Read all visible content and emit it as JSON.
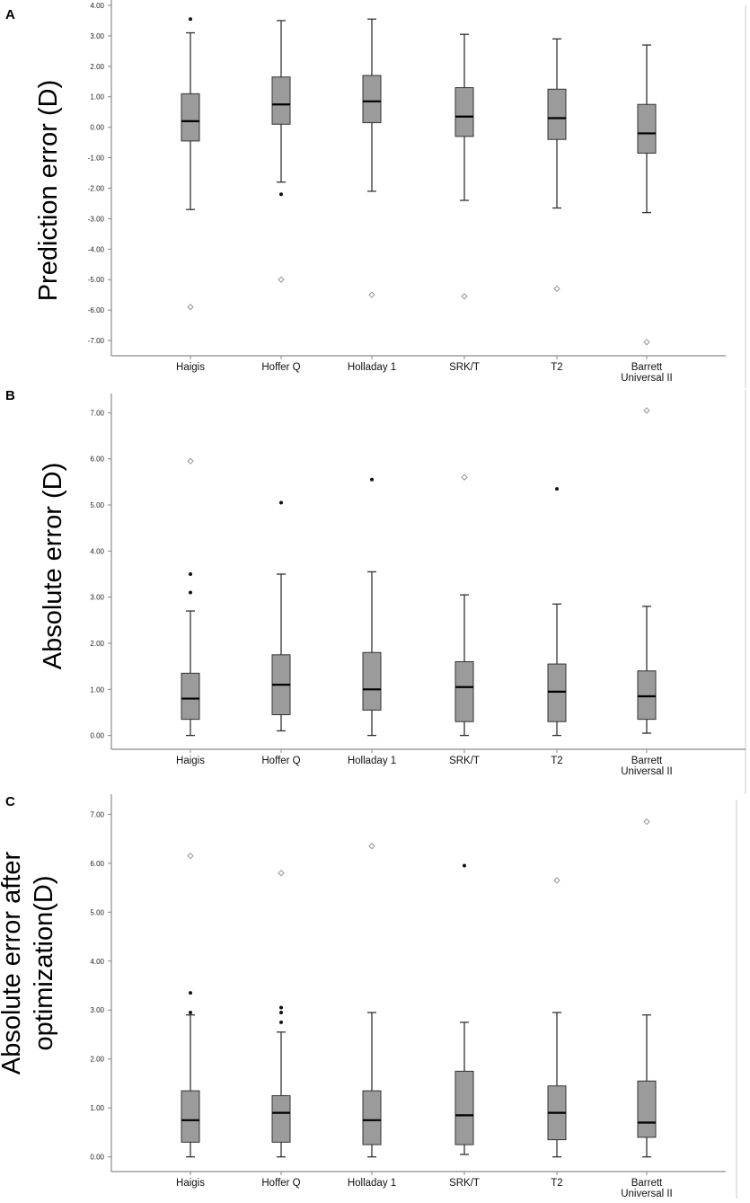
{
  "chart_data": [
    {
      "type": "boxplot",
      "panel": "A",
      "ylabel": "Prediction error (D)",
      "ylim": [
        -7.5,
        4.0
      ],
      "yticks": [
        "4.00",
        "3.00",
        "2.00",
        "1.00",
        "0.00",
        "-1.00",
        "-2.00",
        "-3.00",
        "-4.00",
        "-5.00",
        "-6.00",
        "-7.00"
      ],
      "categories": [
        "Haigis",
        "Hoffer Q",
        "Holladay 1",
        "SRK/T",
        "T2",
        "Barrett Universal II"
      ],
      "boxes": [
        {
          "whisker_low": -2.7,
          "q1": -0.45,
          "median": 0.2,
          "q3": 1.1,
          "whisker_high": 3.1
        },
        {
          "whisker_low": -1.8,
          "q1": 0.1,
          "median": 0.75,
          "q3": 1.65,
          "whisker_high": 3.5
        },
        {
          "whisker_low": -2.1,
          "q1": 0.15,
          "median": 0.85,
          "q3": 1.7,
          "whisker_high": 3.55
        },
        {
          "whisker_low": -2.4,
          "q1": -0.3,
          "median": 0.35,
          "q3": 1.3,
          "whisker_high": 3.05
        },
        {
          "whisker_low": -2.65,
          "q1": -0.4,
          "median": 0.3,
          "q3": 1.25,
          "whisker_high": 2.9
        },
        {
          "whisker_low": -2.8,
          "q1": -0.85,
          "median": -0.2,
          "q3": 0.75,
          "whisker_high": 2.7
        }
      ],
      "outliers": [
        {
          "category": 0,
          "value": 3.55,
          "kind": "dot"
        },
        {
          "category": 0,
          "value": -5.9,
          "kind": "diamond"
        },
        {
          "category": 1,
          "value": -2.2,
          "kind": "dot"
        },
        {
          "category": 1,
          "value": -5.0,
          "kind": "diamond"
        },
        {
          "category": 2,
          "value": -5.5,
          "kind": "diamond"
        },
        {
          "category": 3,
          "value": -5.55,
          "kind": "diamond"
        },
        {
          "category": 4,
          "value": -5.3,
          "kind": "diamond"
        },
        {
          "category": 5,
          "value": -7.05,
          "kind": "diamond"
        }
      ]
    },
    {
      "type": "boxplot",
      "panel": "B",
      "ylabel": "Absolute error (D)",
      "ylim": [
        -0.3,
        7.3
      ],
      "yticks": [
        "7.00",
        "6.00",
        "5.00",
        "4.00",
        "3.00",
        "2.00",
        "1.00",
        "0.00"
      ],
      "categories": [
        "Haigis",
        "Hoffer Q",
        "Holladay 1",
        "SRK/T",
        "T2",
        "Barrett Universal II"
      ],
      "boxes": [
        {
          "whisker_low": 0.0,
          "q1": 0.35,
          "median": 0.8,
          "q3": 1.35,
          "whisker_high": 2.7
        },
        {
          "whisker_low": 0.1,
          "q1": 0.45,
          "median": 1.1,
          "q3": 1.75,
          "whisker_high": 3.5
        },
        {
          "whisker_low": 0.0,
          "q1": 0.55,
          "median": 1.0,
          "q3": 1.8,
          "whisker_high": 3.55
        },
        {
          "whisker_low": 0.0,
          "q1": 0.3,
          "median": 1.05,
          "q3": 1.6,
          "whisker_high": 3.05
        },
        {
          "whisker_low": 0.0,
          "q1": 0.3,
          "median": 0.95,
          "q3": 1.55,
          "whisker_high": 2.85
        },
        {
          "whisker_low": 0.05,
          "q1": 0.35,
          "median": 0.85,
          "q3": 1.4,
          "whisker_high": 2.8
        }
      ],
      "outliers": [
        {
          "category": 0,
          "value": 5.95,
          "kind": "diamond"
        },
        {
          "category": 0,
          "value": 3.5,
          "kind": "dot"
        },
        {
          "category": 0,
          "value": 3.1,
          "kind": "dot"
        },
        {
          "category": 1,
          "value": 5.05,
          "kind": "dot"
        },
        {
          "category": 2,
          "value": 5.55,
          "kind": "dot"
        },
        {
          "category": 3,
          "value": 5.6,
          "kind": "diamond"
        },
        {
          "category": 4,
          "value": 5.35,
          "kind": "dot"
        },
        {
          "category": 5,
          "value": 7.05,
          "kind": "diamond"
        }
      ]
    },
    {
      "type": "boxplot",
      "panel": "C",
      "ylabel": "Absolute error after optimization(D)",
      "ylabel_lines": [
        "Absolute error after",
        "optimization(D)"
      ],
      "ylim": [
        -0.3,
        7.3
      ],
      "yticks": [
        "7.00",
        "6.00",
        "5.00",
        "4.00",
        "3.00",
        "2.00",
        "1.00",
        "0.00"
      ],
      "categories": [
        "Haigis",
        "Hoffer Q",
        "Holladay 1",
        "SRK/T",
        "T2",
        "Barrett Universal II"
      ],
      "boxes": [
        {
          "whisker_low": 0.0,
          "q1": 0.3,
          "median": 0.75,
          "q3": 1.35,
          "whisker_high": 2.9
        },
        {
          "whisker_low": 0.0,
          "q1": 0.3,
          "median": 0.9,
          "q3": 1.25,
          "whisker_high": 2.55
        },
        {
          "whisker_low": 0.0,
          "q1": 0.25,
          "median": 0.75,
          "q3": 1.35,
          "whisker_high": 2.95
        },
        {
          "whisker_low": 0.05,
          "q1": 0.25,
          "median": 0.85,
          "q3": 1.75,
          "whisker_high": 2.75
        },
        {
          "whisker_low": 0.0,
          "q1": 0.35,
          "median": 0.9,
          "q3": 1.45,
          "whisker_high": 2.95
        },
        {
          "whisker_low": 0.0,
          "q1": 0.4,
          "median": 0.7,
          "q3": 1.55,
          "whisker_high": 2.9
        }
      ],
      "outliers": [
        {
          "category": 0,
          "value": 6.15,
          "kind": "diamond"
        },
        {
          "category": 0,
          "value": 3.35,
          "kind": "dot"
        },
        {
          "category": 0,
          "value": 2.95,
          "kind": "dot"
        },
        {
          "category": 1,
          "value": 5.8,
          "kind": "diamond"
        },
        {
          "category": 1,
          "value": 3.05,
          "kind": "dot"
        },
        {
          "category": 1,
          "value": 2.95,
          "kind": "dot"
        },
        {
          "category": 1,
          "value": 2.75,
          "kind": "dot"
        },
        {
          "category": 2,
          "value": 6.35,
          "kind": "diamond"
        },
        {
          "category": 3,
          "value": 5.95,
          "kind": "dot"
        },
        {
          "category": 4,
          "value": 5.65,
          "kind": "diamond"
        },
        {
          "category": 5,
          "value": 6.85,
          "kind": "diamond"
        }
      ]
    }
  ],
  "style": {
    "box_fill": "#9b9b9b",
    "box_stroke": "#333333",
    "whisker_color": "#333333",
    "axis_color": "#8a8a8a",
    "frame_color": "#c8c8c8",
    "median_color": "#000000",
    "outlier_dot_color": "#111111",
    "outlier_diamond_color": "#8a8a8a"
  }
}
